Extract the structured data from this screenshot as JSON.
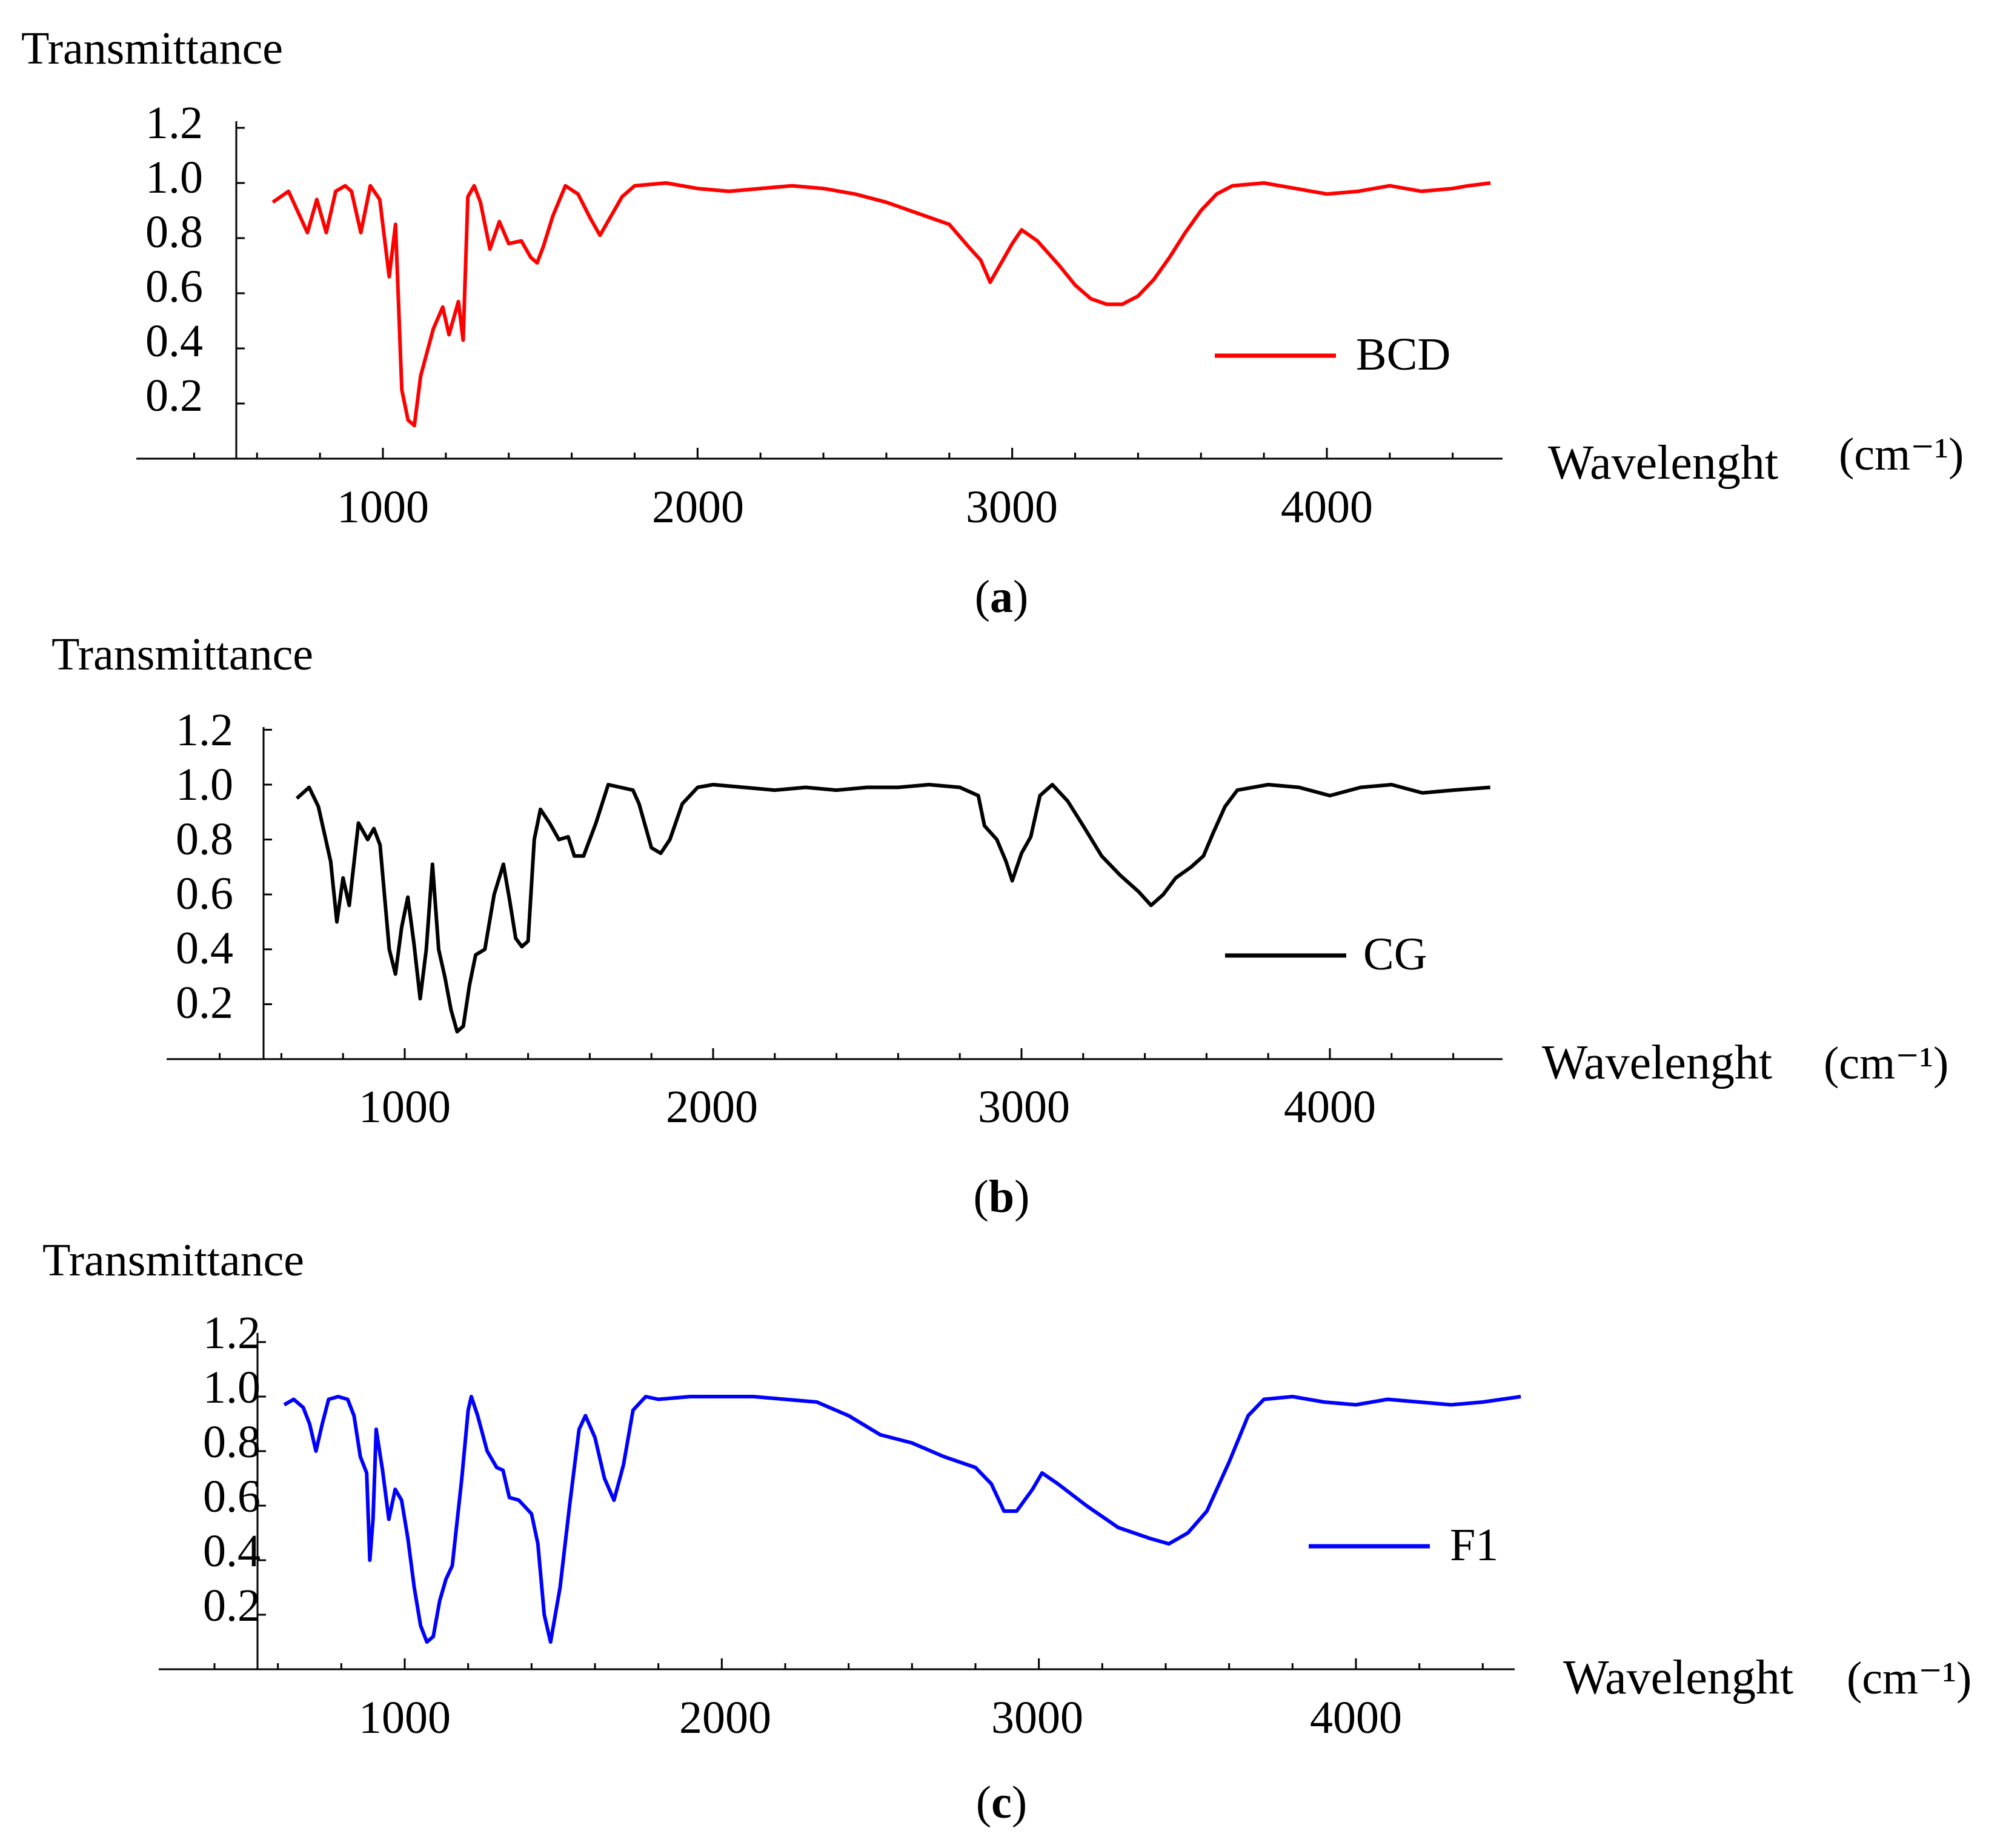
{
  "chart_data": [
    {
      "type": "line",
      "panel_label": "a",
      "ylabel": "Transmittance",
      "xlabel": "Wavelenght",
      "xunit": "(cm⁻¹)",
      "yticks": [
        "1.2",
        "1.0",
        "0.8",
        "0.6",
        "0.4",
        "0.2"
      ],
      "xticks": [
        "1000",
        "2000",
        "3000",
        "4000"
      ],
      "ylim": [
        0,
        1.2
      ],
      "xlim": [
        300,
        4550
      ],
      "legend_position": "center-right",
      "series": [
        {
          "name": "BCD",
          "color": "#ff0000",
          "points": [
            [
              650,
              0.93
            ],
            [
              700,
              0.97
            ],
            [
              720,
              0.92
            ],
            [
              760,
              0.82
            ],
            [
              790,
              0.94
            ],
            [
              820,
              0.82
            ],
            [
              850,
              0.97
            ],
            [
              880,
              0.99
            ],
            [
              900,
              0.97
            ],
            [
              930,
              0.82
            ],
            [
              960,
              0.99
            ],
            [
              990,
              0.94
            ],
            [
              1020,
              0.66
            ],
            [
              1040,
              0.85
            ],
            [
              1060,
              0.25
            ],
            [
              1080,
              0.14
            ],
            [
              1100,
              0.12
            ],
            [
              1120,
              0.3
            ],
            [
              1160,
              0.47
            ],
            [
              1190,
              0.55
            ],
            [
              1210,
              0.45
            ],
            [
              1240,
              0.57
            ],
            [
              1255,
              0.43
            ],
            [
              1270,
              0.95
            ],
            [
              1290,
              0.99
            ],
            [
              1310,
              0.93
            ],
            [
              1340,
              0.76
            ],
            [
              1370,
              0.86
            ],
            [
              1400,
              0.78
            ],
            [
              1440,
              0.79
            ],
            [
              1470,
              0.73
            ],
            [
              1490,
              0.71
            ],
            [
              1510,
              0.77
            ],
            [
              1540,
              0.88
            ],
            [
              1580,
              0.99
            ],
            [
              1620,
              0.96
            ],
            [
              1660,
              0.87
            ],
            [
              1690,
              0.81
            ],
            [
              1720,
              0.87
            ],
            [
              1760,
              0.95
            ],
            [
              1800,
              0.99
            ],
            [
              1900,
              1.0
            ],
            [
              2000,
              0.98
            ],
            [
              2100,
              0.97
            ],
            [
              2200,
              0.98
            ],
            [
              2300,
              0.99
            ],
            [
              2400,
              0.98
            ],
            [
              2500,
              0.96
            ],
            [
              2600,
              0.93
            ],
            [
              2700,
              0.89
            ],
            [
              2800,
              0.85
            ],
            [
              2860,
              0.77
            ],
            [
              2900,
              0.72
            ],
            [
              2930,
              0.64
            ],
            [
              2960,
              0.7
            ],
            [
              3000,
              0.78
            ],
            [
              3030,
              0.83
            ],
            [
              3080,
              0.79
            ],
            [
              3150,
              0.7
            ],
            [
              3200,
              0.63
            ],
            [
              3250,
              0.58
            ],
            [
              3300,
              0.56
            ],
            [
              3350,
              0.56
            ],
            [
              3400,
              0.59
            ],
            [
              3450,
              0.65
            ],
            [
              3500,
              0.73
            ],
            [
              3550,
              0.82
            ],
            [
              3600,
              0.9
            ],
            [
              3650,
              0.96
            ],
            [
              3700,
              0.99
            ],
            [
              3800,
              1.0
            ],
            [
              3900,
              0.98
            ],
            [
              4000,
              0.96
            ],
            [
              4100,
              0.97
            ],
            [
              4200,
              0.99
            ],
            [
              4300,
              0.97
            ],
            [
              4400,
              0.98
            ],
            [
              4450,
              0.99
            ],
            [
              4520,
              1.0
            ]
          ]
        }
      ]
    },
    {
      "type": "line",
      "panel_label": "b",
      "ylabel": "Transmittance",
      "xlabel": "Wavelenght",
      "xunit": "(cm⁻¹)",
      "yticks": [
        "1.2",
        "1.0",
        "0.8",
        "0.6",
        "0.4",
        "0.2"
      ],
      "xticks": [
        "1000",
        "2000",
        "3000",
        "4000"
      ],
      "ylim": [
        0,
        1.2
      ],
      "xlim": [
        300,
        4550
      ],
      "legend_position": "center-right",
      "series": [
        {
          "name": "CG",
          "color": "#000000",
          "points": [
            [
              650,
              0.95
            ],
            [
              690,
              0.99
            ],
            [
              720,
              0.92
            ],
            [
              760,
              0.72
            ],
            [
              780,
              0.5
            ],
            [
              800,
              0.66
            ],
            [
              820,
              0.56
            ],
            [
              850,
              0.86
            ],
            [
              880,
              0.8
            ],
            [
              900,
              0.84
            ],
            [
              920,
              0.78
            ],
            [
              950,
              0.4
            ],
            [
              970,
              0.31
            ],
            [
              990,
              0.48
            ],
            [
              1010,
              0.59
            ],
            [
              1030,
              0.42
            ],
            [
              1050,
              0.22
            ],
            [
              1070,
              0.4
            ],
            [
              1090,
              0.71
            ],
            [
              1110,
              0.4
            ],
            [
              1130,
              0.3
            ],
            [
              1150,
              0.18
            ],
            [
              1170,
              0.1
            ],
            [
              1190,
              0.12
            ],
            [
              1210,
              0.27
            ],
            [
              1230,
              0.38
            ],
            [
              1260,
              0.4
            ],
            [
              1290,
              0.6
            ],
            [
              1320,
              0.71
            ],
            [
              1340,
              0.58
            ],
            [
              1360,
              0.44
            ],
            [
              1380,
              0.41
            ],
            [
              1400,
              0.43
            ],
            [
              1420,
              0.8
            ],
            [
              1440,
              0.91
            ],
            [
              1470,
              0.86
            ],
            [
              1500,
              0.8
            ],
            [
              1530,
              0.81
            ],
            [
              1550,
              0.74
            ],
            [
              1580,
              0.74
            ],
            [
              1620,
              0.86
            ],
            [
              1660,
              1.0
            ],
            [
              1700,
              0.99
            ],
            [
              1740,
              0.98
            ],
            [
              1760,
              0.93
            ],
            [
              1780,
              0.85
            ],
            [
              1800,
              0.77
            ],
            [
              1830,
              0.75
            ],
            [
              1860,
              0.8
            ],
            [
              1900,
              0.93
            ],
            [
              1950,
              0.99
            ],
            [
              2000,
              1.0
            ],
            [
              2100,
              0.99
            ],
            [
              2200,
              0.98
            ],
            [
              2300,
              0.99
            ],
            [
              2400,
              0.98
            ],
            [
              2500,
              0.99
            ],
            [
              2600,
              0.99
            ],
            [
              2700,
              1.0
            ],
            [
              2800,
              0.99
            ],
            [
              2860,
              0.96
            ],
            [
              2880,
              0.85
            ],
            [
              2920,
              0.8
            ],
            [
              2950,
              0.72
            ],
            [
              2970,
              0.65
            ],
            [
              3000,
              0.75
            ],
            [
              3030,
              0.81
            ],
            [
              3060,
              0.96
            ],
            [
              3100,
              1.0
            ],
            [
              3150,
              0.94
            ],
            [
              3200,
              0.85
            ],
            [
              3260,
              0.74
            ],
            [
              3320,
              0.67
            ],
            [
              3380,
              0.61
            ],
            [
              3420,
              0.56
            ],
            [
              3460,
              0.6
            ],
            [
              3500,
              0.66
            ],
            [
              3550,
              0.7
            ],
            [
              3590,
              0.74
            ],
            [
              3620,
              0.82
            ],
            [
              3660,
              0.92
            ],
            [
              3700,
              0.98
            ],
            [
              3800,
              1.0
            ],
            [
              3900,
              0.99
            ],
            [
              4000,
              0.96
            ],
            [
              4100,
              0.99
            ],
            [
              4200,
              1.0
            ],
            [
              4300,
              0.97
            ],
            [
              4400,
              0.98
            ],
            [
              4520,
              0.99
            ]
          ]
        }
      ]
    },
    {
      "type": "line",
      "panel_label": "c",
      "ylabel": "Transmittance",
      "xlabel": "Wavelenght",
      "xunit": "(cm⁻¹)",
      "yticks": [
        "1.2",
        "1.0",
        "0.8",
        "0.6",
        "0.4",
        "0.2"
      ],
      "xticks": [
        "1000",
        "2000",
        "3000",
        "4000"
      ],
      "ylim": [
        0,
        1.2
      ],
      "xlim": [
        300,
        4550
      ],
      "legend_position": "center-right",
      "series": [
        {
          "name": "F1",
          "color": "#0000ff",
          "points": [
            [
              620,
              0.97
            ],
            [
              650,
              0.99
            ],
            [
              680,
              0.96
            ],
            [
              700,
              0.9
            ],
            [
              720,
              0.8
            ],
            [
              740,
              0.9
            ],
            [
              760,
              0.99
            ],
            [
              790,
              1.0
            ],
            [
              820,
              0.99
            ],
            [
              840,
              0.93
            ],
            [
              860,
              0.78
            ],
            [
              880,
              0.72
            ],
            [
              890,
              0.4
            ],
            [
              900,
              0.55
            ],
            [
              910,
              0.88
            ],
            [
              930,
              0.73
            ],
            [
              950,
              0.55
            ],
            [
              970,
              0.66
            ],
            [
              990,
              0.62
            ],
            [
              1010,
              0.48
            ],
            [
              1030,
              0.3
            ],
            [
              1050,
              0.16
            ],
            [
              1070,
              0.1
            ],
            [
              1090,
              0.12
            ],
            [
              1110,
              0.25
            ],
            [
              1130,
              0.33
            ],
            [
              1150,
              0.38
            ],
            [
              1180,
              0.7
            ],
            [
              1200,
              0.95
            ],
            [
              1210,
              1.0
            ],
            [
              1230,
              0.93
            ],
            [
              1260,
              0.8
            ],
            [
              1290,
              0.74
            ],
            [
              1310,
              0.73
            ],
            [
              1330,
              0.63
            ],
            [
              1360,
              0.62
            ],
            [
              1400,
              0.57
            ],
            [
              1420,
              0.46
            ],
            [
              1440,
              0.2
            ],
            [
              1460,
              0.1
            ],
            [
              1490,
              0.3
            ],
            [
              1520,
              0.6
            ],
            [
              1550,
              0.88
            ],
            [
              1570,
              0.93
            ],
            [
              1600,
              0.85
            ],
            [
              1630,
              0.7
            ],
            [
              1660,
              0.62
            ],
            [
              1690,
              0.75
            ],
            [
              1720,
              0.95
            ],
            [
              1760,
              1.0
            ],
            [
              1800,
              0.99
            ],
            [
              1900,
              1.0
            ],
            [
              2000,
              1.0
            ],
            [
              2100,
              1.0
            ],
            [
              2200,
              0.99
            ],
            [
              2300,
              0.98
            ],
            [
              2400,
              0.93
            ],
            [
              2500,
              0.86
            ],
            [
              2600,
              0.83
            ],
            [
              2700,
              0.78
            ],
            [
              2800,
              0.74
            ],
            [
              2850,
              0.68
            ],
            [
              2890,
              0.58
            ],
            [
              2930,
              0.58
            ],
            [
              2980,
              0.66
            ],
            [
              3010,
              0.72
            ],
            [
              3060,
              0.68
            ],
            [
              3150,
              0.6
            ],
            [
              3250,
              0.52
            ],
            [
              3350,
              0.48
            ],
            [
              3410,
              0.46
            ],
            [
              3470,
              0.5
            ],
            [
              3530,
              0.58
            ],
            [
              3600,
              0.76
            ],
            [
              3660,
              0.93
            ],
            [
              3710,
              0.99
            ],
            [
              3800,
              1.0
            ],
            [
              3900,
              0.98
            ],
            [
              4000,
              0.97
            ],
            [
              4100,
              0.99
            ],
            [
              4200,
              0.98
            ],
            [
              4300,
              0.97
            ],
            [
              4400,
              0.98
            ],
            [
              4520,
              1.0
            ]
          ]
        }
      ]
    }
  ]
}
